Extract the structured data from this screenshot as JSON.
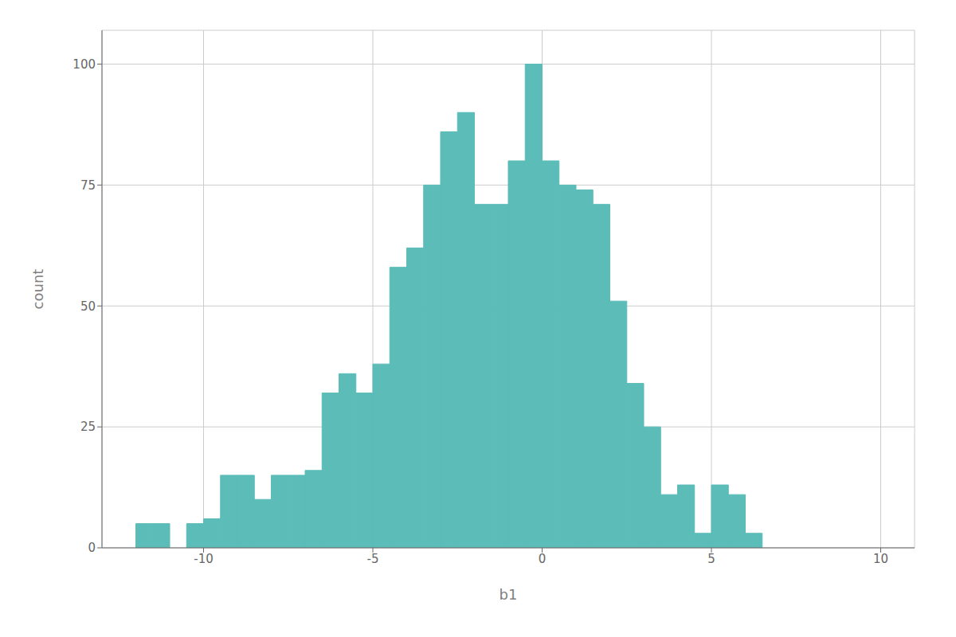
{
  "chart_data": {
    "type": "histogram",
    "xlabel": "b1",
    "ylabel": "count",
    "x": [
      -12.0,
      -11.5,
      -11.0,
      -10.5,
      -10.0,
      -9.5,
      -9.0,
      -8.5,
      -8.0,
      -7.5,
      -7.0,
      -6.5,
      -6.0,
      -5.5,
      -5.0,
      -4.5,
      -4.0,
      -3.5,
      -3.0,
      -2.5,
      -2.0,
      -1.5,
      -1.0,
      -0.5,
      0.0,
      0.5,
      1.0,
      1.5,
      2.0,
      2.5,
      3.0,
      3.5,
      4.0,
      4.5,
      5.0,
      5.5,
      6.0,
      6.5,
      7.0,
      8.0,
      9.0
    ],
    "bin_width": 0.5,
    "values": [
      5,
      5,
      0,
      5,
      6,
      15,
      15,
      10,
      15,
      15,
      16,
      32,
      36,
      32,
      38,
      58,
      62,
      75,
      86,
      90,
      71,
      71,
      80,
      100,
      80,
      75,
      74,
      71,
      51,
      34,
      25,
      11,
      13,
      3,
      13,
      11,
      3,
      0,
      0,
      0,
      0
    ],
    "color": "#5bbcb8",
    "xlim": [
      -13,
      11
    ],
    "ylim": [
      0,
      107
    ],
    "xticks": [
      -10,
      -5,
      0,
      5,
      10
    ],
    "yticks": [
      0,
      25,
      50,
      75,
      100
    ],
    "grid": true
  }
}
